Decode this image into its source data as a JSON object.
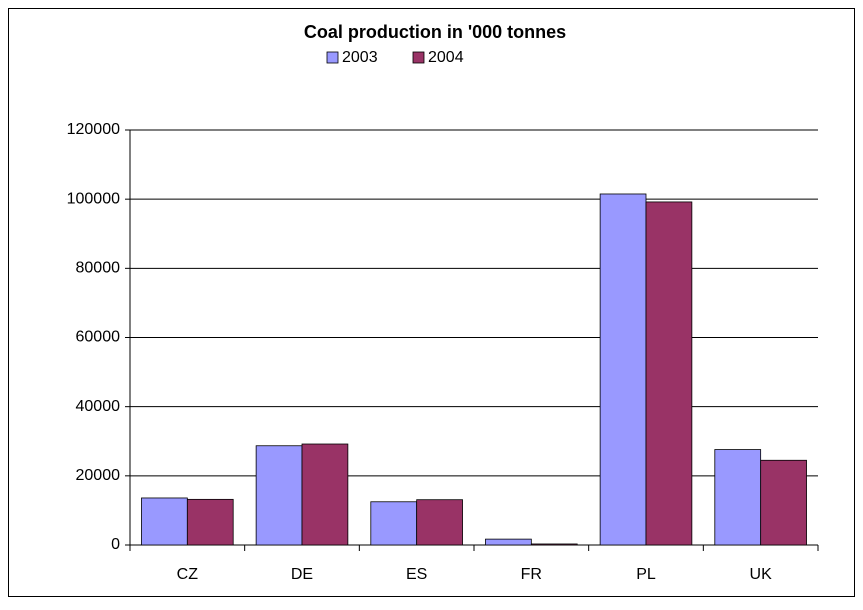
{
  "chart_data": {
    "type": "bar",
    "title": "Coal production in '000 tonnes",
    "categories": [
      "CZ",
      "DE",
      "ES",
      "FR",
      "PL",
      "UK"
    ],
    "series": [
      {
        "name": "2003",
        "color": "#9999ff",
        "values": [
          13600,
          28700,
          12500,
          1700,
          101500,
          27600
        ]
      },
      {
        "name": "2004",
        "color": "#993366",
        "values": [
          13200,
          29200,
          13100,
          300,
          99200,
          24500
        ]
      }
    ],
    "ylim": [
      0,
      120000
    ],
    "yticks": [
      0,
      20000,
      40000,
      60000,
      80000,
      100000,
      120000
    ],
    "grid": true
  }
}
